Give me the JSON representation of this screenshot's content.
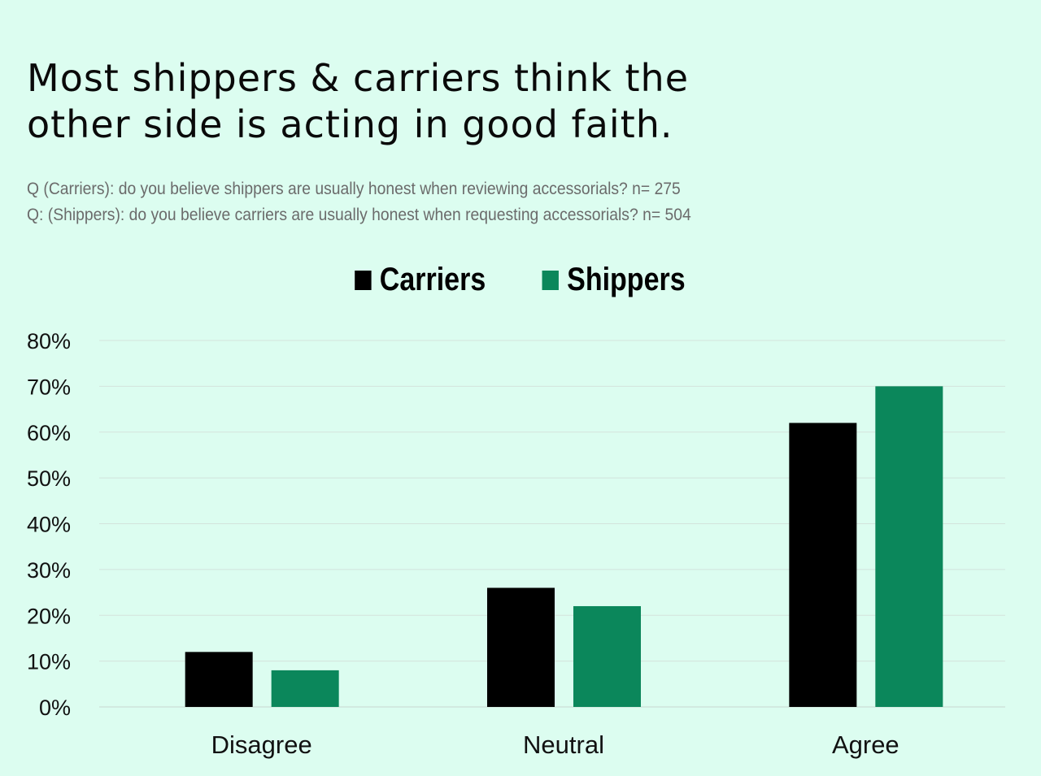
{
  "chart_data": {
    "type": "bar",
    "title": "Most shippers & carriers think the other side is acting in good faith.",
    "title_lines": [
      "Most shippers & carriers think the",
      "other side is acting in good faith."
    ],
    "subtitles": [
      "Q (Carriers): do you believe shippers are usually honest when reviewing accessorials? n= 275",
      "Q: (Shippers): do you believe carriers are usually honest when requesting accessorials? n= 504"
    ],
    "categories": [
      "Disagree",
      "Neutral",
      "Agree"
    ],
    "series": [
      {
        "name": "Carriers",
        "values": [
          12,
          26,
          62
        ],
        "color": "#000000"
      },
      {
        "name": "Shippers",
        "values": [
          8,
          22,
          70
        ],
        "color": "#0b875b"
      }
    ],
    "ylim": [
      0,
      80
    ],
    "yticks": [
      "0%",
      "10%",
      "20%",
      "30%",
      "40%",
      "50%",
      "60%",
      "70%",
      "80%"
    ],
    "grid": true,
    "legend_position": "top-center",
    "background": "#dcfdf0"
  }
}
